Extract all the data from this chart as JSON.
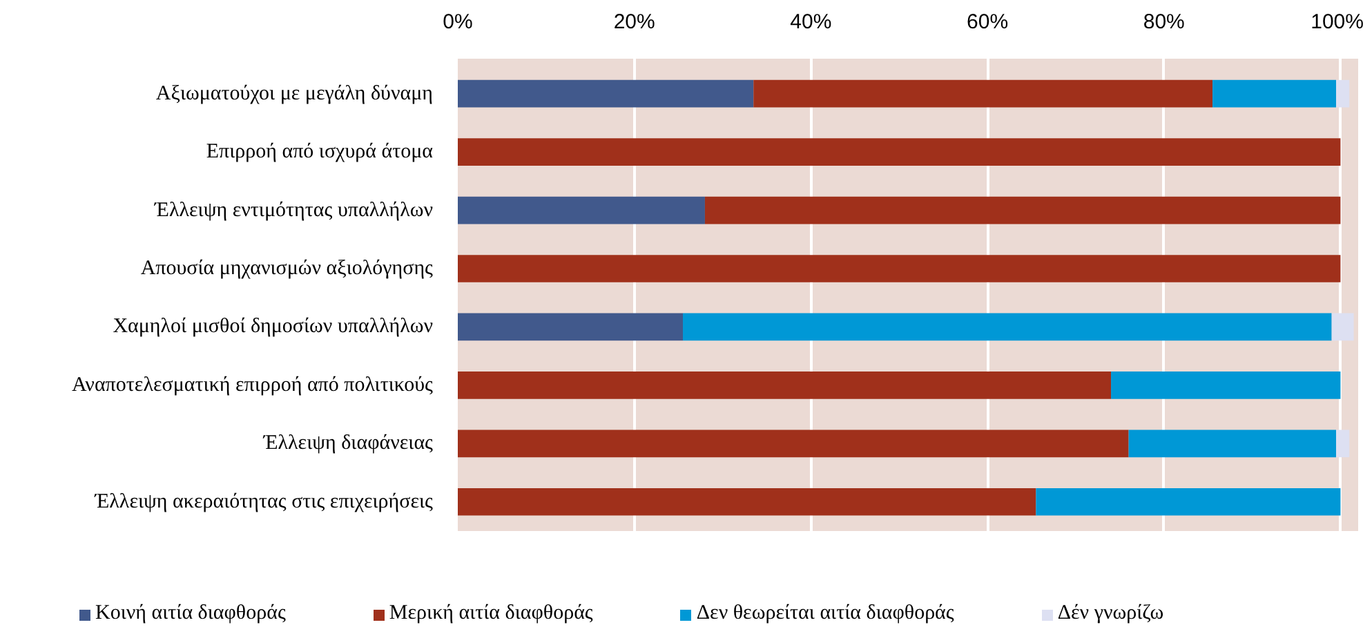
{
  "chart_data": {
    "type": "bar",
    "orientation": "horizontal",
    "stacked": true,
    "categories": [
      "Αξιωματούχοι με μεγάλη δύναμη",
      "Επιρροή από ισχυρά άτομα",
      "Έλλειψη εντιμότητας υπαλλήλων",
      "Απουσία μηχανισμών αξιολόγησης",
      "Χαμηλοί μισθοί δημοσίων υπαλλήλων",
      "Αναποτελεσματική επιρροή από πολιτικούς",
      "Έλλειψη διαφάνειας",
      "Έλλειψη ακεραιότητας στις επιχειρήσεις"
    ],
    "series": [
      {
        "name": "Κοινή αιτία διαφθοράς",
        "color": "#41598c",
        "values": [
          33.5,
          0,
          28,
          0,
          25.5,
          0,
          0,
          0
        ]
      },
      {
        "name": "Μερική αιτία διαφθοράς",
        "color": "#a0301b",
        "values": [
          52,
          100,
          72,
          100,
          0,
          74,
          76,
          65.5
        ]
      },
      {
        "name": "Δεν θεωρείται αιτία διαφθοράς",
        "color": "#0098d6",
        "values": [
          14,
          0,
          0,
          0,
          73.5,
          26,
          23.5,
          34.5
        ]
      },
      {
        "name": "Δέν γνωρίζω",
        "color": "#dde0f2",
        "values": [
          1.5,
          0,
          0,
          0,
          2.5,
          0,
          1.5,
          0
        ]
      }
    ],
    "xlim": [
      0,
      102
    ],
    "xticks": [
      {
        "value": 0,
        "label": "0%"
      },
      {
        "value": 20,
        "label": "20%"
      },
      {
        "value": 40,
        "label": "40%"
      },
      {
        "value": 60,
        "label": "60%"
      },
      {
        "value": 80,
        "label": "80%"
      },
      {
        "value": 100,
        "label": "100%"
      }
    ],
    "grid": "x",
    "legend": "bottom"
  }
}
